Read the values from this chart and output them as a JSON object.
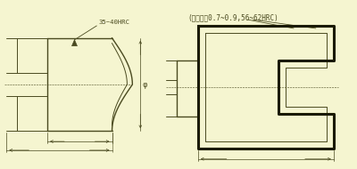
{
  "bg_color": "#f5f5d0",
  "line_color": "#4a4a20",
  "thick_color": "#1a1a00",
  "text_color": "#4a4a20",
  "label_35_40": "35~40HRC",
  "label_carb": "(渗碳深度0.7~0.9,56~62HRC)",
  "label_phi": "φ",
  "figsize": [
    4.0,
    1.9
  ],
  "dpi": 100
}
